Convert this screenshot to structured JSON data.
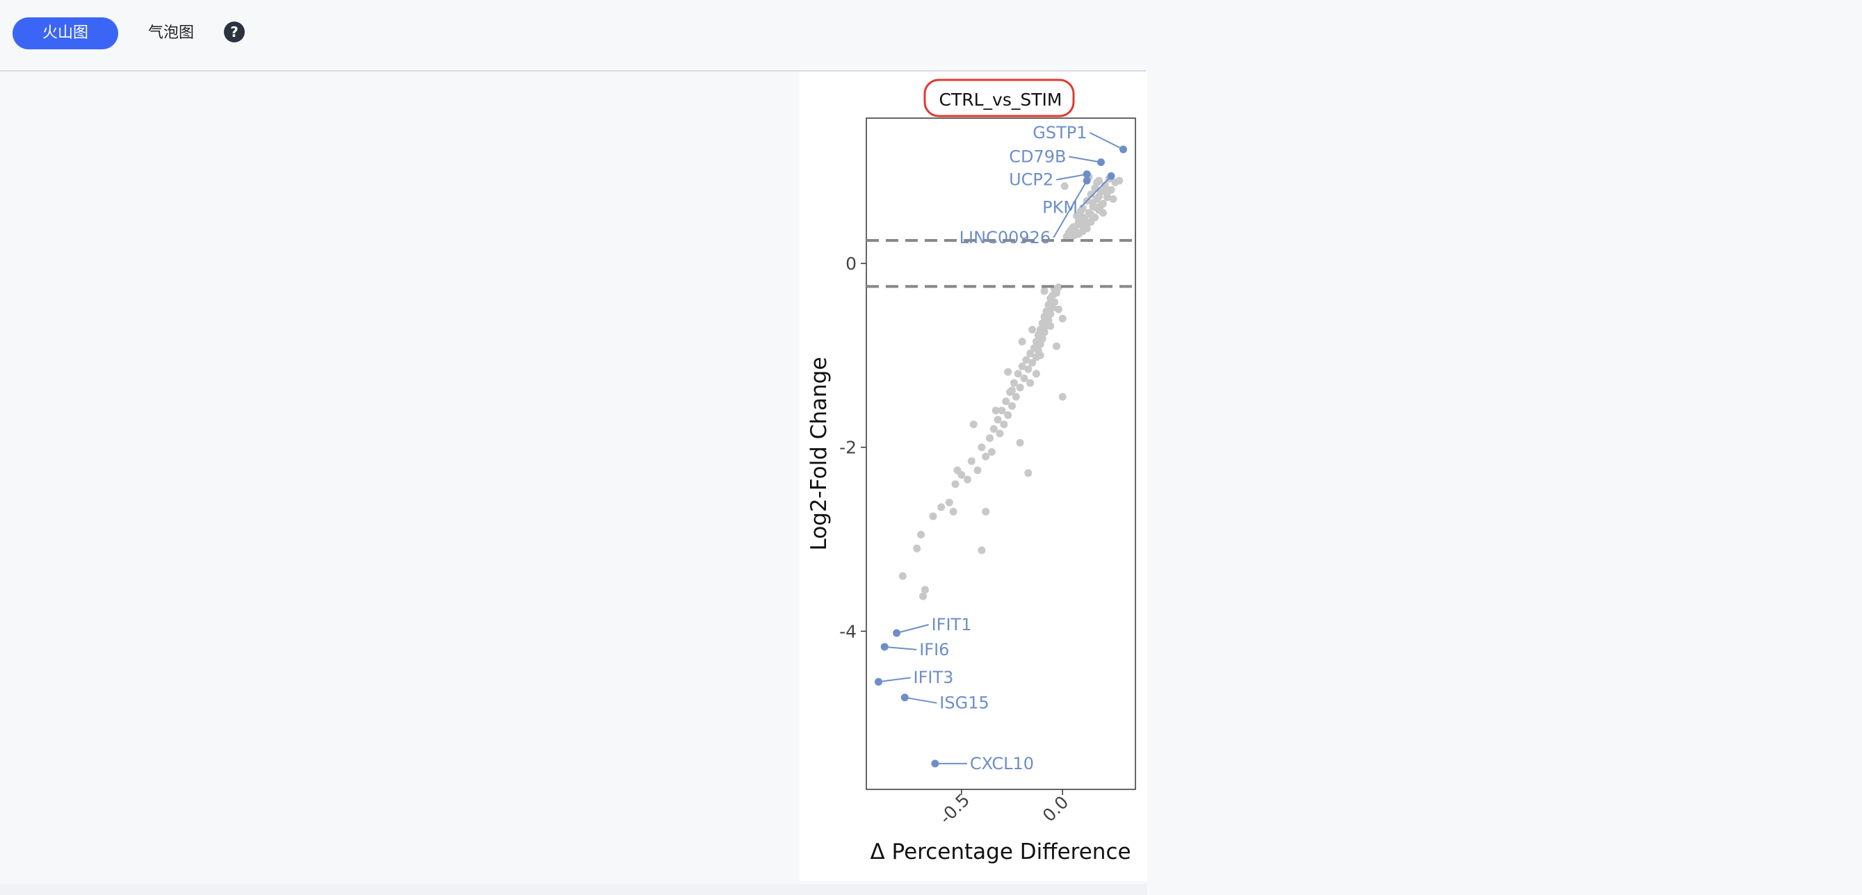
{
  "tabs": [
    {
      "label": "火山图",
      "active": true
    },
    {
      "label": "气泡图",
      "active": false
    }
  ],
  "help_icon": {
    "glyph": "?",
    "icon": "question-circle-icon"
  },
  "chart_data": {
    "type": "scatter",
    "title": "CTRL_vs_STIM",
    "xlabel": "Δ Percentage Difference",
    "ylabel": "Log2-Fold Change",
    "xlim": [
      -0.97,
      0.36
    ],
    "ylim": [
      -5.72,
      1.58
    ],
    "xticks": [
      -0.5,
      0.0
    ],
    "xtick_labels": [
      "-0.5",
      "0.0"
    ],
    "yticks": [
      0,
      -2,
      -4
    ],
    "ytick_labels": [
      "0",
      "-2",
      "-4"
    ],
    "thresholds": [
      0.25,
      -0.25
    ],
    "grid": false,
    "colors": {
      "background_points": "#c8c8c8",
      "highlight": "#6d8ec8",
      "threshold_line": "#888888",
      "title_border": "#e03a2f"
    },
    "highlighted": [
      {
        "gene": "GSTP1",
        "x": 0.3,
        "y": 1.24
      },
      {
        "gene": "CD79B",
        "x": 0.19,
        "y": 1.1
      },
      {
        "gene": "UCP2",
        "x": 0.12,
        "y": 0.97
      },
      {
        "gene": "PKM",
        "x": 0.24,
        "y": 0.95
      },
      {
        "gene": "LINC00926",
        "x": 0.12,
        "y": 0.9
      },
      {
        "gene": "IFIT1",
        "x": -0.82,
        "y": -4.02
      },
      {
        "gene": "IFI6",
        "x": -0.88,
        "y": -4.17
      },
      {
        "gene": "IFIT3",
        "x": -0.91,
        "y": -4.55
      },
      {
        "gene": "ISG15",
        "x": -0.78,
        "y": -4.72
      },
      {
        "gene": "CXCL10",
        "x": -0.63,
        "y": -5.44
      }
    ],
    "points": [
      [
        0.05,
        0.3
      ],
      [
        0.08,
        0.32
      ],
      [
        0.1,
        0.35
      ],
      [
        0.12,
        0.38
      ],
      [
        0.06,
        0.4
      ],
      [
        0.09,
        0.42
      ],
      [
        0.14,
        0.45
      ],
      [
        0.11,
        0.48
      ],
      [
        0.16,
        0.5
      ],
      [
        0.07,
        0.52
      ],
      [
        0.13,
        0.55
      ],
      [
        0.18,
        0.58
      ],
      [
        0.1,
        0.6
      ],
      [
        0.15,
        0.62
      ],
      [
        0.2,
        0.65
      ],
      [
        0.12,
        0.68
      ],
      [
        0.17,
        0.7
      ],
      [
        0.22,
        0.72
      ],
      [
        0.14,
        0.75
      ],
      [
        0.19,
        0.78
      ],
      [
        0.24,
        0.8
      ],
      [
        0.16,
        0.82
      ],
      [
        0.21,
        0.85
      ],
      [
        0.26,
        0.88
      ],
      [
        0.18,
        0.9
      ],
      [
        0.23,
        0.92
      ],
      [
        0.13,
        0.94
      ],
      [
        0.04,
        0.36
      ],
      [
        0.03,
        0.33
      ],
      [
        0.08,
        0.46
      ],
      [
        0.01,
        0.84
      ],
      [
        0.28,
        0.9
      ],
      [
        0.2,
        0.55
      ],
      [
        0.25,
        0.7
      ],
      [
        0.11,
        0.41
      ],
      [
        0.15,
        0.66
      ],
      [
        0.06,
        0.31
      ],
      [
        0.19,
        0.63
      ],
      [
        0.09,
        0.57
      ],
      [
        0.17,
        0.88
      ],
      [
        0.02,
        0.29
      ],
      [
        0.07,
        0.34
      ],
      [
        0.12,
        0.44
      ],
      [
        0.22,
        0.77
      ],
      [
        0.14,
        0.53
      ],
      [
        0.05,
        0.39
      ],
      [
        0.1,
        0.5
      ],
      [
        0.18,
        0.73
      ],
      [
        0.21,
        0.81
      ],
      [
        0.16,
        0.61
      ],
      [
        -0.02,
        -0.26
      ],
      [
        -0.04,
        -0.28
      ],
      [
        -0.03,
        -0.32
      ],
      [
        -0.05,
        -0.35
      ],
      [
        -0.06,
        -0.38
      ],
      [
        -0.04,
        -0.42
      ],
      [
        -0.07,
        -0.45
      ],
      [
        -0.05,
        -0.48
      ],
      [
        -0.08,
        -0.52
      ],
      [
        -0.06,
        -0.55
      ],
      [
        -0.09,
        -0.58
      ],
      [
        -0.07,
        -0.62
      ],
      [
        -0.1,
        -0.65
      ],
      [
        -0.08,
        -0.68
      ],
      [
        -0.11,
        -0.72
      ],
      [
        -0.09,
        -0.75
      ],
      [
        -0.12,
        -0.78
      ],
      [
        -0.1,
        -0.82
      ],
      [
        -0.13,
        -0.85
      ],
      [
        -0.11,
        -0.88
      ],
      [
        -0.14,
        -0.92
      ],
      [
        -0.12,
        -0.95
      ],
      [
        -0.16,
        -0.98
      ],
      [
        -0.13,
        -1.02
      ],
      [
        -0.18,
        -1.05
      ],
      [
        -0.15,
        -1.08
      ],
      [
        -0.2,
        -1.12
      ],
      [
        -0.17,
        -1.15
      ],
      [
        -0.22,
        -1.2
      ],
      [
        -0.19,
        -1.25
      ],
      [
        -0.24,
        -1.3
      ],
      [
        -0.21,
        -1.35
      ],
      [
        -0.26,
        -1.4
      ],
      [
        -0.23,
        -1.45
      ],
      [
        -0.28,
        -1.5
      ],
      [
        -0.25,
        -1.55
      ],
      [
        -0.3,
        -1.6
      ],
      [
        -0.27,
        -1.65
      ],
      [
        -0.32,
        -1.7
      ],
      [
        -0.29,
        -1.75
      ],
      [
        -0.34,
        -1.8
      ],
      [
        -0.31,
        -1.85
      ],
      [
        -0.36,
        -1.9
      ],
      [
        -0.4,
        -2.0
      ],
      [
        -0.38,
        -2.1
      ],
      [
        -0.45,
        -2.15
      ],
      [
        -0.42,
        -2.25
      ],
      [
        -0.5,
        -2.3
      ],
      [
        -0.47,
        -2.35
      ],
      [
        -0.53,
        -2.4
      ],
      [
        -0.56,
        -2.6
      ],
      [
        -0.6,
        -2.65
      ],
      [
        -0.54,
        -2.7
      ],
      [
        -0.64,
        -2.75
      ],
      [
        -0.7,
        -2.95
      ],
      [
        -0.72,
        -3.1
      ],
      [
        -0.79,
        -3.4
      ],
      [
        -0.68,
        -3.55
      ],
      [
        -0.69,
        -3.62
      ],
      [
        -0.4,
        -3.12
      ],
      [
        -0.38,
        -2.7
      ],
      [
        -0.17,
        -2.28
      ],
      [
        0.0,
        -1.45
      ],
      [
        0.0,
        -0.6
      ],
      [
        -0.02,
        -0.5
      ],
      [
        -0.15,
        -0.72
      ],
      [
        -0.03,
        -0.9
      ],
      [
        -0.2,
        -0.85
      ],
      [
        -0.13,
        -1.2
      ],
      [
        -0.27,
        -1.18
      ],
      [
        -0.33,
        -1.6
      ],
      [
        -0.21,
        -1.95
      ],
      [
        -0.35,
        -2.05
      ],
      [
        -0.44,
        -1.75
      ],
      [
        -0.52,
        -2.25
      ],
      [
        -0.09,
        -0.3
      ],
      [
        -0.06,
        -0.68
      ],
      [
        -0.16,
        -1.3
      ],
      [
        -0.25,
        -1.38
      ],
      [
        -0.11,
        -1.0
      ]
    ]
  }
}
